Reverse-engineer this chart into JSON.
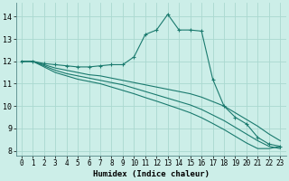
{
  "xlabel": "Humidex (Indice chaleur)",
  "bg_color": "#cceee8",
  "grid_color": "#aad8d0",
  "line_color": "#1a7a6e",
  "xlim": [
    -0.5,
    23.5
  ],
  "ylim": [
    7.8,
    14.6
  ],
  "yticks": [
    8,
    9,
    10,
    11,
    12,
    13,
    14
  ],
  "xticks": [
    0,
    1,
    2,
    3,
    4,
    5,
    6,
    7,
    8,
    9,
    10,
    11,
    12,
    13,
    14,
    15,
    16,
    17,
    18,
    19,
    20,
    21,
    22,
    23
  ],
  "series": [
    {
      "x": [
        0,
        1,
        2,
        3,
        4,
        5,
        6,
        7,
        8,
        9,
        10,
        11,
        12,
        13,
        14,
        15,
        16,
        17,
        18,
        19,
        20,
        21,
        22,
        23
      ],
      "y": [
        12.0,
        12.0,
        11.9,
        11.85,
        11.8,
        11.75,
        11.75,
        11.8,
        11.85,
        11.85,
        12.2,
        13.2,
        13.4,
        14.1,
        13.4,
        13.4,
        13.35,
        11.2,
        10.0,
        9.5,
        9.2,
        8.6,
        8.3,
        8.2
      ],
      "marker": true
    },
    {
      "x": [
        0,
        1,
        2,
        3,
        4,
        5,
        6,
        7,
        8,
        9,
        10,
        11,
        12,
        13,
        14,
        15,
        16,
        17,
        18,
        19,
        20,
        21,
        22,
        23
      ],
      "y": [
        12.0,
        12.0,
        11.85,
        11.7,
        11.6,
        11.5,
        11.4,
        11.35,
        11.25,
        11.15,
        11.05,
        10.95,
        10.85,
        10.75,
        10.65,
        10.55,
        10.4,
        10.2,
        10.0,
        9.7,
        9.4,
        9.1,
        8.75,
        8.45
      ],
      "marker": false
    },
    {
      "x": [
        0,
        1,
        2,
        3,
        4,
        5,
        6,
        7,
        8,
        9,
        10,
        11,
        12,
        13,
        14,
        15,
        16,
        17,
        18,
        19,
        20,
        21,
        22,
        23
      ],
      "y": [
        12.0,
        12.0,
        11.8,
        11.6,
        11.45,
        11.35,
        11.25,
        11.15,
        11.05,
        10.95,
        10.8,
        10.65,
        10.5,
        10.35,
        10.2,
        10.05,
        9.85,
        9.6,
        9.35,
        9.05,
        8.75,
        8.45,
        8.2,
        8.1
      ],
      "marker": false
    },
    {
      "x": [
        0,
        1,
        2,
        3,
        4,
        5,
        6,
        7,
        8,
        9,
        10,
        11,
        12,
        13,
        14,
        15,
        16,
        17,
        18,
        19,
        20,
        21,
        22,
        23
      ],
      "y": [
        12.0,
        12.0,
        11.75,
        11.5,
        11.35,
        11.2,
        11.1,
        11.0,
        10.85,
        10.7,
        10.55,
        10.38,
        10.22,
        10.05,
        9.88,
        9.7,
        9.48,
        9.22,
        8.95,
        8.65,
        8.35,
        8.1,
        8.1,
        8.2
      ],
      "marker": false
    }
  ]
}
